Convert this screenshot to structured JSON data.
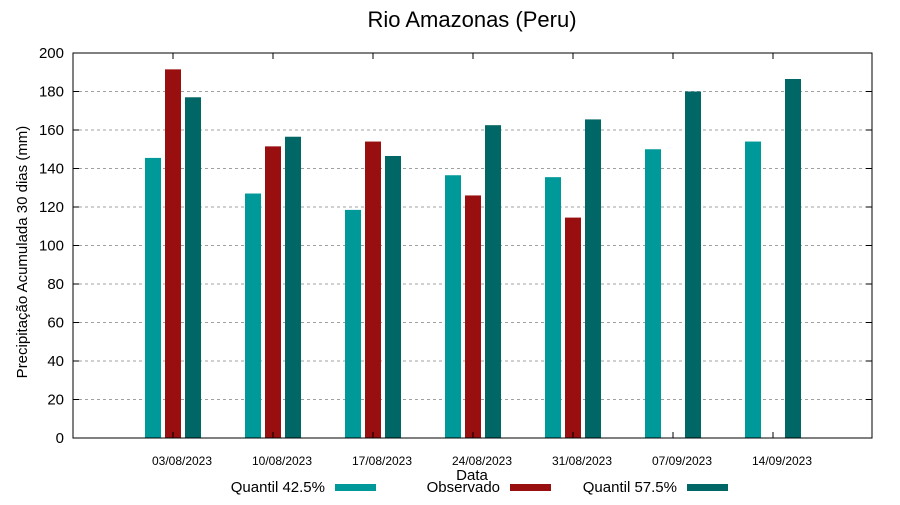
{
  "chart_data": {
    "type": "bar",
    "title": "Rio Amazonas (Peru)",
    "xlabel": "Data",
    "ylabel": "Precipitação Acumulada 30 dias (mm)",
    "ylim": [
      0,
      200
    ],
    "yticks": [
      0,
      20,
      40,
      60,
      80,
      100,
      120,
      140,
      160,
      180,
      200
    ],
    "grid": true,
    "legend_position": "bottom",
    "categories": [
      "03/08/2023",
      "10/08/2023",
      "17/08/2023",
      "24/08/2023",
      "31/08/2023",
      "07/09/2023",
      "14/09/2023"
    ],
    "series": [
      {
        "name": "Quantil 42.5%",
        "color": "#009999",
        "values": [
          145.5,
          127,
          118.5,
          136.5,
          135.5,
          150,
          154
        ]
      },
      {
        "name": "Observado",
        "color": "#990f0f",
        "values": [
          191.5,
          151.5,
          154,
          126,
          114.5,
          null,
          null
        ]
      },
      {
        "name": "Quantil 57.5%",
        "color": "#006666",
        "values": [
          177,
          156.5,
          146.5,
          162.5,
          165.5,
          180,
          186.5
        ]
      }
    ]
  }
}
